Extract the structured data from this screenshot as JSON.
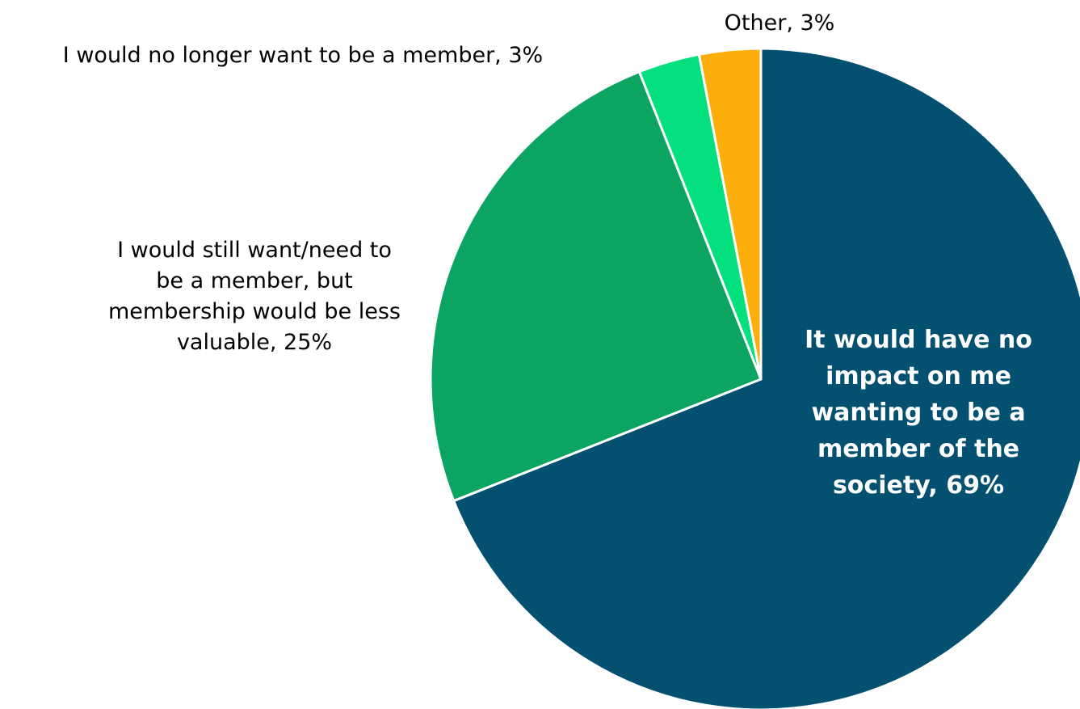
{
  "chart_data": {
    "type": "pie",
    "title": "",
    "start_angle_deg": 0,
    "direction": "clockwise",
    "slices": [
      {
        "label": "It would have no impact on me wanting to be a member of the society",
        "value": 69,
        "display": [
          "It would have no",
          "impact on me",
          "wanting to be a",
          "member of the",
          "society, 69%"
        ],
        "color": "#045071",
        "label_style": "inside-bold-white"
      },
      {
        "label": "I would still want/need to be a member, but membership would be less valuable",
        "value": 25,
        "display": [
          "I would still want/need to",
          "be a member, but",
          "membership would be less",
          "valuable, 25%"
        ],
        "color": "#0BA462",
        "label_style": "outside"
      },
      {
        "label": "I would no longer want to be a member",
        "value": 3,
        "display": [
          "I would no longer want to be a member, 3%"
        ],
        "color": "#05E07F",
        "label_style": "outside"
      },
      {
        "label": "Other",
        "value": 3,
        "display": [
          "Other, 3%"
        ],
        "color": "#FCAF0C",
        "label_style": "outside"
      }
    ],
    "legend": "none"
  }
}
